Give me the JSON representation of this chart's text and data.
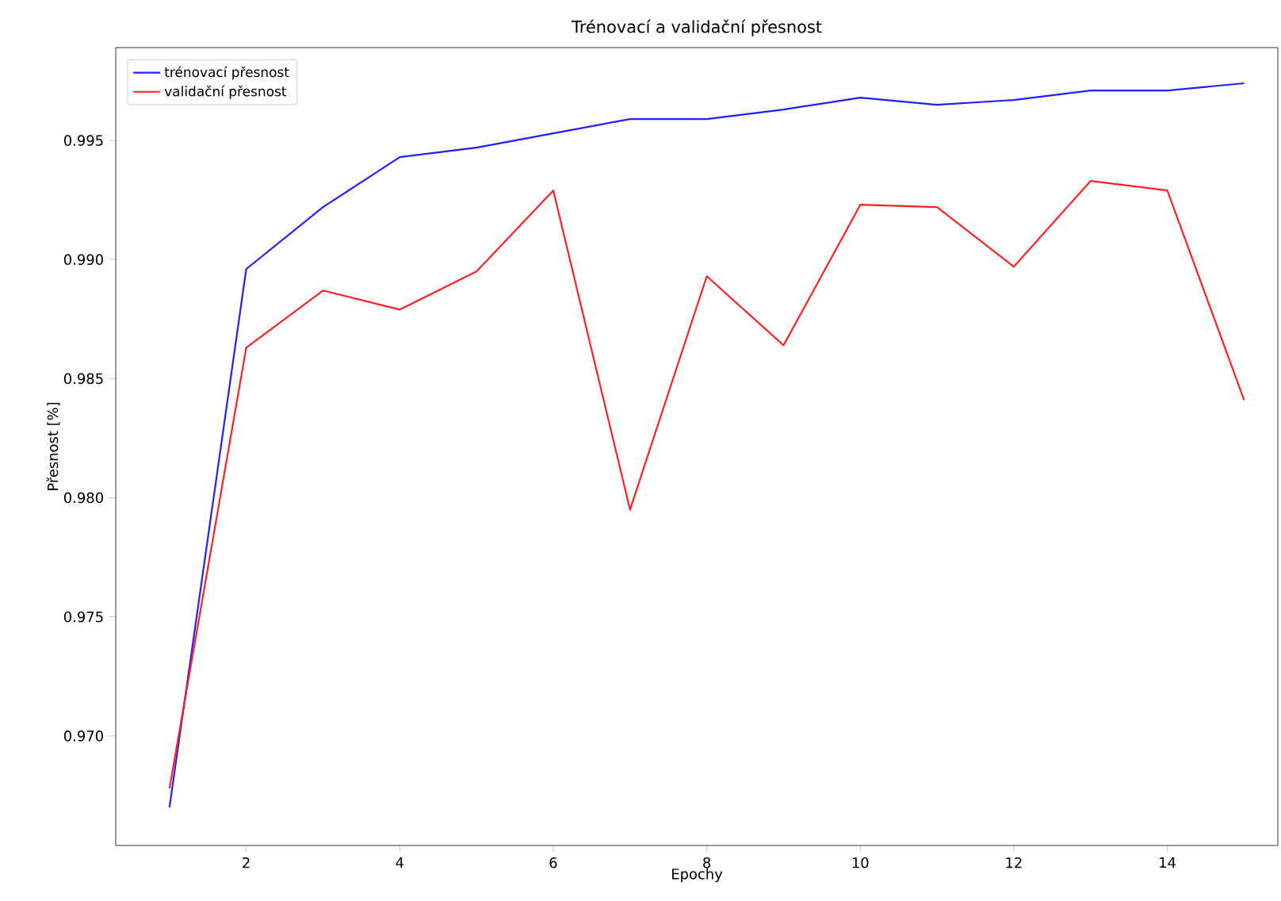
{
  "chart_data": {
    "type": "line",
    "title": "Trénovací a validační přesnost",
    "xlabel": "Epochy",
    "ylabel": "Přesnost [%]",
    "x": [
      1,
      2,
      3,
      4,
      5,
      6,
      7,
      8,
      9,
      10,
      11,
      12,
      13,
      14,
      15
    ],
    "series": [
      {
        "name": "trénovací přesnost",
        "color": "#2020ff",
        "values": [
          0.967,
          0.9896,
          0.9922,
          0.9943,
          0.9947,
          0.9953,
          0.9959,
          0.9959,
          0.9963,
          0.9968,
          0.9965,
          0.9967,
          0.9971,
          0.9971,
          0.9974
        ]
      },
      {
        "name": "validační přesnost",
        "color": "#ff2020",
        "values": [
          0.9678,
          0.9863,
          0.9887,
          0.9879,
          0.9895,
          0.9929,
          0.9795,
          0.9893,
          0.9864,
          0.9923,
          0.9922,
          0.9897,
          0.9933,
          0.9929,
          0.9841
        ]
      }
    ],
    "xlim": [
      0.3,
      15.44
    ],
    "ylim": [
      0.9654,
      0.9989
    ],
    "xticks": [
      2,
      4,
      6,
      8,
      10,
      12,
      14
    ],
    "yticks": [
      {
        "value": 0.97,
        "label": "0.970"
      },
      {
        "value": 0.975,
        "label": "0.975"
      },
      {
        "value": 0.98,
        "label": "0.980"
      },
      {
        "value": 0.985,
        "label": "0.985"
      },
      {
        "value": 0.99,
        "label": "0.990"
      },
      {
        "value": 0.995,
        "label": "0.995"
      }
    ],
    "grid": false,
    "legend": "top left",
    "marker": "none",
    "line_style": "solid"
  }
}
